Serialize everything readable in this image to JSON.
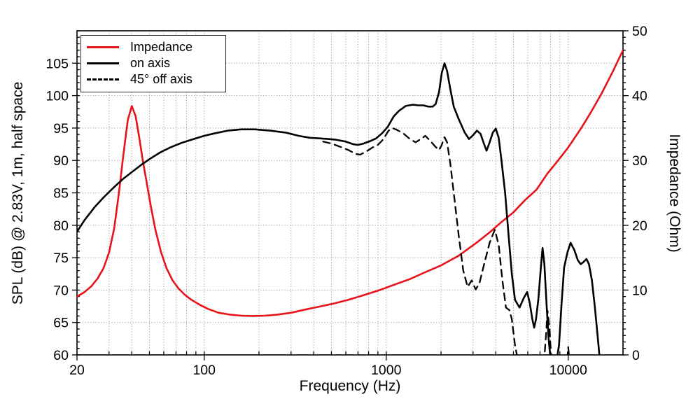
{
  "chart_data": {
    "type": "line",
    "title": "",
    "xlabel": "Frequency (Hz)",
    "ylabel_left": "SPL (dB) @ 2.83V, 1m, half space",
    "ylabel_right": "Impedance (Ohm)",
    "x_scale": "log",
    "x_range": [
      20,
      20000
    ],
    "y_left_range": [
      60,
      110
    ],
    "y_right_range": [
      0,
      50
    ],
    "x_ticks": [
      20,
      100,
      1000,
      10000
    ],
    "x_grid": [
      30,
      40,
      50,
      60,
      70,
      80,
      90,
      100,
      200,
      300,
      400,
      500,
      600,
      700,
      800,
      900,
      1000,
      2000,
      3000,
      4000,
      5000,
      6000,
      7000,
      8000,
      9000,
      10000
    ],
    "y_left_ticks": [
      60,
      65,
      70,
      75,
      80,
      85,
      90,
      95,
      100,
      105
    ],
    "y_left_grid": [
      65,
      70,
      75,
      80,
      85,
      90,
      95,
      100,
      105
    ],
    "y_right_ticks": [
      0,
      10,
      20,
      30,
      40,
      50
    ],
    "grid_style": "dotted",
    "grid_color": "#999999",
    "frame_color": "#000000",
    "legend_position": "top-left",
    "series": [
      {
        "name": "Impedance",
        "axis": "right",
        "color": "#e8131a",
        "dash": "",
        "width": 2.6,
        "points": [
          [
            20,
            9.0
          ],
          [
            22,
            9.7
          ],
          [
            24,
            10.6
          ],
          [
            26,
            11.8
          ],
          [
            28,
            13.4
          ],
          [
            30,
            15.8
          ],
          [
            32,
            19.5
          ],
          [
            34,
            25.0
          ],
          [
            36,
            31.0
          ],
          [
            38,
            36.2
          ],
          [
            40,
            38.4
          ],
          [
            42,
            36.8
          ],
          [
            44,
            33.5
          ],
          [
            46,
            30.0
          ],
          [
            48,
            27.0
          ],
          [
            51,
            22.8
          ],
          [
            54,
            19.2
          ],
          [
            58,
            15.8
          ],
          [
            62,
            13.4
          ],
          [
            67,
            11.5
          ],
          [
            72,
            10.3
          ],
          [
            78,
            9.3
          ],
          [
            85,
            8.5
          ],
          [
            95,
            7.7
          ],
          [
            105,
            7.1
          ],
          [
            120,
            6.5
          ],
          [
            140,
            6.2
          ],
          [
            160,
            6.05
          ],
          [
            185,
            6.0
          ],
          [
            215,
            6.05
          ],
          [
            250,
            6.2
          ],
          [
            300,
            6.5
          ],
          [
            360,
            7.0
          ],
          [
            430,
            7.45
          ],
          [
            520,
            7.95
          ],
          [
            620,
            8.5
          ],
          [
            750,
            9.2
          ],
          [
            900,
            9.9
          ],
          [
            1100,
            10.8
          ],
          [
            1350,
            11.7
          ],
          [
            1650,
            12.8
          ],
          [
            2000,
            13.8
          ],
          [
            2500,
            15.3
          ],
          [
            3100,
            17.2
          ],
          [
            3700,
            18.9
          ],
          [
            4300,
            20.5
          ],
          [
            5000,
            22.0
          ],
          [
            5800,
            23.9
          ],
          [
            6700,
            25.5
          ],
          [
            7700,
            28.0
          ],
          [
            8800,
            30.0
          ],
          [
            10000,
            32.0
          ],
          [
            11800,
            35.0
          ],
          [
            13500,
            37.7
          ],
          [
            15300,
            40.4
          ],
          [
            17500,
            43.6
          ],
          [
            20000,
            47.0
          ]
        ]
      },
      {
        "name": "on axis",
        "axis": "left",
        "color": "#000000",
        "dash": "",
        "width": 2.6,
        "points": [
          [
            20,
            79.0
          ],
          [
            22,
            80.8
          ],
          [
            25,
            82.8
          ],
          [
            28,
            84.3
          ],
          [
            32,
            85.9
          ],
          [
            36,
            87.2
          ],
          [
            40,
            88.2
          ],
          [
            45,
            89.3
          ],
          [
            50,
            90.2
          ],
          [
            57,
            91.2
          ],
          [
            65,
            92.0
          ],
          [
            75,
            92.7
          ],
          [
            85,
            93.2
          ],
          [
            100,
            93.8
          ],
          [
            115,
            94.2
          ],
          [
            135,
            94.6
          ],
          [
            160,
            94.8
          ],
          [
            190,
            94.8
          ],
          [
            230,
            94.6
          ],
          [
            280,
            94.3
          ],
          [
            330,
            93.8
          ],
          [
            380,
            93.5
          ],
          [
            430,
            93.4
          ],
          [
            480,
            93.3
          ],
          [
            530,
            93.2
          ],
          [
            600,
            92.9
          ],
          [
            660,
            92.5
          ],
          [
            700,
            92.4
          ],
          [
            750,
            92.6
          ],
          [
            820,
            93.0
          ],
          [
            880,
            93.4
          ],
          [
            950,
            94.2
          ],
          [
            1020,
            95.2
          ],
          [
            1100,
            96.8
          ],
          [
            1180,
            97.7
          ],
          [
            1280,
            98.4
          ],
          [
            1400,
            98.6
          ],
          [
            1500,
            98.5
          ],
          [
            1600,
            98.5
          ],
          [
            1700,
            98.3
          ],
          [
            1800,
            98.3
          ],
          [
            1870,
            98.7
          ],
          [
            1950,
            100.5
          ],
          [
            2020,
            103.5
          ],
          [
            2090,
            105.0
          ],
          [
            2160,
            103.8
          ],
          [
            2250,
            101.0
          ],
          [
            2350,
            98.3
          ],
          [
            2500,
            96.4
          ],
          [
            2700,
            94.3
          ],
          [
            2850,
            93.3
          ],
          [
            3000,
            93.9
          ],
          [
            3150,
            94.6
          ],
          [
            3300,
            94.1
          ],
          [
            3450,
            92.5
          ],
          [
            3560,
            91.5
          ],
          [
            3700,
            92.8
          ],
          [
            3850,
            94.3
          ],
          [
            4000,
            94.9
          ],
          [
            4150,
            93.5
          ],
          [
            4300,
            90.0
          ],
          [
            4500,
            85.0
          ],
          [
            4700,
            78.5
          ],
          [
            4900,
            72.5
          ],
          [
            5100,
            68.5
          ],
          [
            5400,
            67.3
          ],
          [
            5700,
            68.8
          ],
          [
            5950,
            69.7
          ],
          [
            6150,
            68.0
          ],
          [
            6350,
            65.5
          ],
          [
            6500,
            64.2
          ],
          [
            6650,
            65.5
          ],
          [
            6850,
            68.5
          ],
          [
            7050,
            73.0
          ],
          [
            7230,
            76.5
          ],
          [
            7400,
            74.0
          ],
          [
            7600,
            68.0
          ],
          [
            7800,
            62.5
          ],
          [
            8000,
            59.3
          ],
          [
            8300,
            58.5
          ],
          [
            8600,
            58.8
          ],
          [
            8900,
            61.5
          ],
          [
            9200,
            68.0
          ],
          [
            9500,
            73.5
          ],
          [
            9900,
            75.8
          ],
          [
            10300,
            77.3
          ],
          [
            10800,
            76.2
          ],
          [
            11300,
            74.6
          ],
          [
            11700,
            74.0
          ],
          [
            12100,
            74.3
          ],
          [
            12600,
            74.8
          ],
          [
            13000,
            74.0
          ],
          [
            13500,
            71.5
          ],
          [
            14000,
            67.5
          ],
          [
            14500,
            63.0
          ],
          [
            15000,
            58.5
          ]
        ]
      },
      {
        "name": "45° off axis",
        "axis": "left",
        "color": "#000000",
        "dash": "10 7",
        "width": 2.3,
        "points": [
          [
            450,
            92.9
          ],
          [
            500,
            92.6
          ],
          [
            560,
            92.1
          ],
          [
            620,
            91.6
          ],
          [
            680,
            91.0
          ],
          [
            720,
            90.9
          ],
          [
            780,
            91.4
          ],
          [
            840,
            92.0
          ],
          [
            900,
            92.4
          ],
          [
            960,
            93.2
          ],
          [
            1030,
            94.6
          ],
          [
            1080,
            95.0
          ],
          [
            1150,
            94.7
          ],
          [
            1250,
            94.1
          ],
          [
            1350,
            93.3
          ],
          [
            1450,
            92.8
          ],
          [
            1550,
            93.3
          ],
          [
            1640,
            93.8
          ],
          [
            1750,
            93.0
          ],
          [
            1850,
            92.2
          ],
          [
            1950,
            91.6
          ],
          [
            2020,
            92.4
          ],
          [
            2090,
            93.6
          ],
          [
            2160,
            92.8
          ],
          [
            2250,
            89.5
          ],
          [
            2350,
            85.0
          ],
          [
            2500,
            78.5
          ],
          [
            2650,
            73.0
          ],
          [
            2800,
            70.5
          ],
          [
            2950,
            71.5
          ],
          [
            3100,
            70.1
          ],
          [
            3250,
            71.0
          ],
          [
            3450,
            74.0
          ],
          [
            3700,
            77.3
          ],
          [
            3950,
            79.3
          ],
          [
            4150,
            77.0
          ],
          [
            4350,
            71.5
          ],
          [
            4550,
            67.3
          ],
          [
            4750,
            66.9
          ],
          [
            4900,
            65.5
          ],
          [
            5100,
            61.5
          ],
          [
            5350,
            58.5
          ],
          [
            7300,
            57.5
          ],
          [
            7550,
            63.0
          ],
          [
            7700,
            66.8
          ],
          [
            7900,
            64.0
          ],
          [
            8100,
            58.5
          ],
          [
            9800,
            58.0
          ],
          [
            10000,
            61.2
          ],
          [
            10250,
            58.0
          ]
        ]
      }
    ]
  }
}
